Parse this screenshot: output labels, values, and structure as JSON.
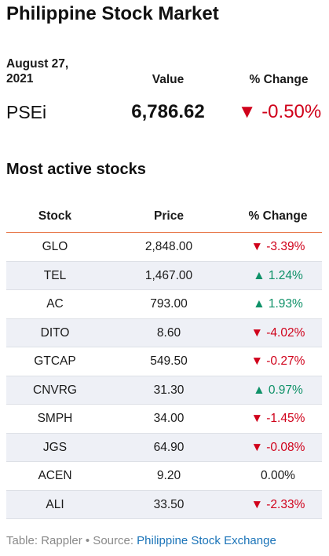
{
  "title": "Philippine Stock Market",
  "summary": {
    "date": "August 27, 2021",
    "value_header": "Value",
    "change_header": "% Change",
    "index_name": "PSEi",
    "index_value": "6,786.62",
    "index_change": "-0.50%",
    "index_direction": "down"
  },
  "subtitle": "Most active stocks",
  "columns": [
    "Stock",
    "Price",
    "% Change"
  ],
  "footer": {
    "prefix": "Table: Rappler • Source: ",
    "source_link": "Philippine Stock Exchange"
  },
  "colors": {
    "down": "#d0021b",
    "up": "#0f9168",
    "accent_line": "#e87b4e",
    "link": "#1a73b8"
  },
  "chart_data": {
    "type": "table",
    "columns": [
      "Stock",
      "Price",
      "% Change"
    ],
    "rows": [
      {
        "stock": "GLO",
        "price": "2,848.00",
        "change": "-3.39%",
        "direction": "down"
      },
      {
        "stock": "TEL",
        "price": "1,467.00",
        "change": "1.24%",
        "direction": "up"
      },
      {
        "stock": "AC",
        "price": "793.00",
        "change": "1.93%",
        "direction": "up"
      },
      {
        "stock": "DITO",
        "price": "8.60",
        "change": "-4.02%",
        "direction": "down"
      },
      {
        "stock": "GTCAP",
        "price": "549.50",
        "change": "-0.27%",
        "direction": "down"
      },
      {
        "stock": "CNVRG",
        "price": "31.30",
        "change": "0.97%",
        "direction": "up"
      },
      {
        "stock": "SMPH",
        "price": "34.00",
        "change": "-1.45%",
        "direction": "down"
      },
      {
        "stock": "JGS",
        "price": "64.90",
        "change": "-0.08%",
        "direction": "down"
      },
      {
        "stock": "ACEN",
        "price": "9.20",
        "change": "0.00%",
        "direction": "flat"
      },
      {
        "stock": "ALI",
        "price": "33.50",
        "change": "-2.33%",
        "direction": "down"
      }
    ]
  }
}
